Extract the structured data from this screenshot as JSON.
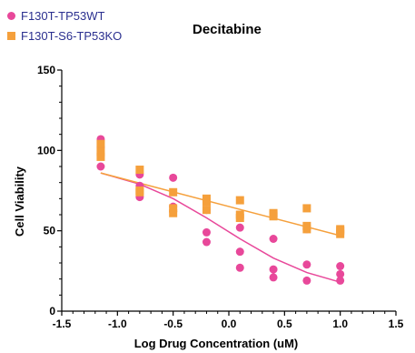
{
  "chart_data": {
    "type": "scatter",
    "title": "Decitabine",
    "xlabel": "Log Drug Concentration (uM)",
    "ylabel": "Cell Viability",
    "xlim": [
      -1.5,
      1.5
    ],
    "ylim": [
      0,
      150
    ],
    "xticks": [
      "-1.5",
      "-1.0",
      "-0.5",
      "0.0",
      "0.5",
      "1.0",
      "1.5"
    ],
    "yticks": [
      "0",
      "50",
      "100",
      "150"
    ],
    "xtick_values": [
      -1.5,
      -1.0,
      -0.5,
      0.0,
      0.5,
      1.0,
      1.5
    ],
    "ytick_values": [
      0,
      50,
      100,
      150
    ],
    "grid": false,
    "legend_position": "top-left",
    "series": [
      {
        "name": "F130T-TP53WT",
        "marker": "circle",
        "color": "#e8489a",
        "points": [
          [
            -1.15,
            107
          ],
          [
            -1.15,
            102
          ],
          [
            -1.15,
            90
          ],
          [
            -0.8,
            85
          ],
          [
            -0.8,
            78
          ],
          [
            -0.8,
            71
          ],
          [
            -0.5,
            83
          ],
          [
            -0.5,
            65
          ],
          [
            -0.5,
            62
          ],
          [
            -0.2,
            63
          ],
          [
            -0.2,
            49
          ],
          [
            -0.2,
            43
          ],
          [
            0.1,
            52
          ],
          [
            0.1,
            37
          ],
          [
            0.1,
            27
          ],
          [
            0.4,
            45
          ],
          [
            0.4,
            26
          ],
          [
            0.4,
            21
          ],
          [
            0.7,
            51
          ],
          [
            0.7,
            29
          ],
          [
            0.7,
            19
          ],
          [
            1.0,
            28
          ],
          [
            1.0,
            23
          ],
          [
            1.0,
            19
          ]
        ],
        "fit": [
          [
            -1.15,
            86
          ],
          [
            -0.8,
            79
          ],
          [
            -0.5,
            70
          ],
          [
            -0.2,
            58
          ],
          [
            0.1,
            45
          ],
          [
            0.4,
            33
          ],
          [
            0.7,
            24
          ],
          [
            1.0,
            18
          ]
        ]
      },
      {
        "name": "F130T-S6-TP53KO",
        "marker": "square",
        "color": "#f5a03c",
        "points": [
          [
            -1.15,
            104
          ],
          [
            -1.15,
            99
          ],
          [
            -1.15,
            96
          ],
          [
            -0.8,
            88
          ],
          [
            -0.8,
            75
          ],
          [
            -0.8,
            74
          ],
          [
            -0.5,
            74
          ],
          [
            -0.5,
            64
          ],
          [
            -0.5,
            61
          ],
          [
            -0.2,
            70
          ],
          [
            -0.2,
            68
          ],
          [
            -0.2,
            63
          ],
          [
            0.1,
            69
          ],
          [
            0.1,
            60
          ],
          [
            0.1,
            58
          ],
          [
            0.4,
            61
          ],
          [
            0.4,
            60
          ],
          [
            0.4,
            59
          ],
          [
            0.7,
            64
          ],
          [
            0.7,
            53
          ],
          [
            0.7,
            51
          ],
          [
            1.0,
            51
          ],
          [
            1.0,
            50
          ],
          [
            1.0,
            48
          ]
        ],
        "fit": [
          [
            -1.15,
            86
          ],
          [
            1.0,
            47
          ]
        ]
      }
    ]
  }
}
